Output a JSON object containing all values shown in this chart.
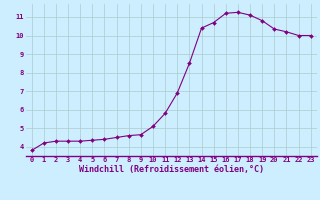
{
  "x": [
    0,
    1,
    2,
    3,
    4,
    5,
    6,
    7,
    8,
    9,
    10,
    11,
    12,
    13,
    14,
    15,
    16,
    17,
    18,
    19,
    20,
    21,
    22,
    23
  ],
  "y": [
    3.8,
    4.2,
    4.3,
    4.3,
    4.3,
    4.35,
    4.4,
    4.5,
    4.6,
    4.65,
    5.1,
    5.8,
    6.9,
    8.5,
    10.4,
    10.7,
    11.2,
    11.25,
    11.1,
    10.8,
    10.35,
    10.2,
    10.0,
    10.0
  ],
  "line_color": "#800080",
  "marker": "D",
  "marker_size": 2.0,
  "bg_color": "#cceeff",
  "grid_color": "#aacccc",
  "xlabel": "Windchill (Refroidissement éolien,°C)",
  "xlabel_color": "#800080",
  "ylim": [
    3.5,
    11.7
  ],
  "xlim": [
    -0.5,
    23.5
  ],
  "yticks": [
    4,
    5,
    6,
    7,
    8,
    9,
    10,
    11
  ],
  "xticks": [
    0,
    1,
    2,
    3,
    4,
    5,
    6,
    7,
    8,
    9,
    10,
    11,
    12,
    13,
    14,
    15,
    16,
    17,
    18,
    19,
    20,
    21,
    22,
    23
  ],
  "tick_color": "#800080",
  "tick_fontsize": 5.0,
  "xlabel_fontsize": 6.0,
  "spine_color": "#800080"
}
